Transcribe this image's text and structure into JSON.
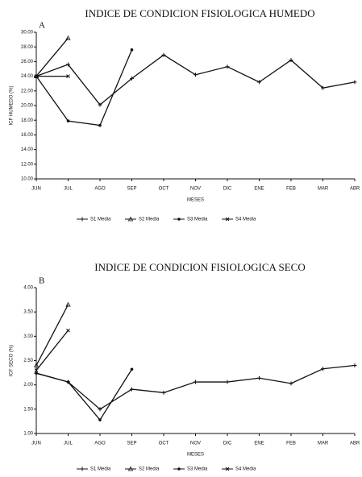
{
  "chart_data": [
    {
      "type": "line",
      "title": "INDICE DE CONDICION FISIOLOGICA HUMEDO",
      "panel_label": "A",
      "y_label": "ICF HUMEDO (%)",
      "x_label": "MESES",
      "categories": [
        "JUN",
        "JUL",
        "AGO",
        "SEP",
        "OCT",
        "NOV",
        "DIC",
        "ENE",
        "FEB",
        "MAR",
        "ABR"
      ],
      "ylim": [
        10,
        30
      ],
      "yticks": [
        {
          "value": 10,
          "label": "10.00"
        },
        {
          "value": 12,
          "label": "12.00"
        },
        {
          "value": 14,
          "label": "14.00"
        },
        {
          "value": 16,
          "label": "16.00"
        },
        {
          "value": 18,
          "label": "18.00"
        },
        {
          "value": 20,
          "label": "20.00"
        },
        {
          "value": 22,
          "label": "22.00"
        },
        {
          "value": 24,
          "label": "24.00"
        },
        {
          "value": 26,
          "label": "26.00"
        },
        {
          "value": 28,
          "label": "28.00"
        },
        {
          "value": 30,
          "label": "30.00"
        }
      ],
      "series": [
        {
          "name": "S1 Media",
          "color": "#111111",
          "values": [
            24.0,
            25.6,
            20.1,
            23.7,
            26.9,
            24.2,
            25.3,
            23.2,
            26.2,
            22.4,
            23.2
          ]
        },
        {
          "name": "S2 Media",
          "color": "#111111",
          "values": [
            24.0,
            29.2,
            null,
            null,
            null,
            null,
            null,
            null,
            null,
            null,
            null
          ]
        },
        {
          "name": "S3 Media",
          "color": "#111111",
          "values": [
            24.0,
            17.9,
            17.3,
            27.6,
            null,
            null,
            null,
            null,
            null,
            null,
            null
          ]
        },
        {
          "name": "S4 Media",
          "color": "#111111",
          "values": [
            24.0,
            24.0,
            null,
            null,
            null,
            null,
            null,
            null,
            null,
            null,
            null
          ]
        }
      ]
    },
    {
      "type": "line",
      "title": "INDICE DE CONDICION FISIOLOGICA SECO",
      "panel_label": "B",
      "y_label": "ICF SECO (%)",
      "x_label": "MESES",
      "categories": [
        "JUN",
        "JUL",
        "AGO",
        "SEP",
        "OCT",
        "NOV",
        "DIC",
        "ENE",
        "FEB",
        "MAR",
        "ABR"
      ],
      "ylim": [
        1,
        4
      ],
      "yticks": [
        {
          "value": 1,
          "label": "1.00"
        },
        {
          "value": 1.5,
          "label": "1.50"
        },
        {
          "value": 2,
          "label": "2.00"
        },
        {
          "value": 2.5,
          "label": "2.50"
        },
        {
          "value": 3,
          "label": "3.00"
        },
        {
          "value": 3.5,
          "label": "3.50"
        },
        {
          "value": 4,
          "label": "4.00"
        }
      ],
      "series": [
        {
          "name": "S1 Media",
          "color": "#111111",
          "values": [
            2.24,
            2.06,
            1.5,
            1.91,
            1.84,
            2.06,
            2.06,
            2.14,
            2.03,
            2.33,
            2.4
          ]
        },
        {
          "name": "S2 Media",
          "color": "#111111",
          "values": [
            2.4,
            3.65,
            null,
            null,
            null,
            null,
            null,
            null,
            null,
            null,
            null
          ]
        },
        {
          "name": "S3 Media",
          "color": "#111111",
          "values": [
            2.24,
            2.06,
            1.28,
            2.32,
            null,
            null,
            null,
            null,
            null,
            null,
            null
          ]
        },
        {
          "name": "S4 Media",
          "color": "#111111",
          "values": [
            2.3,
            3.12,
            null,
            null,
            null,
            null,
            null,
            null,
            null,
            null,
            null
          ]
        }
      ]
    }
  ]
}
